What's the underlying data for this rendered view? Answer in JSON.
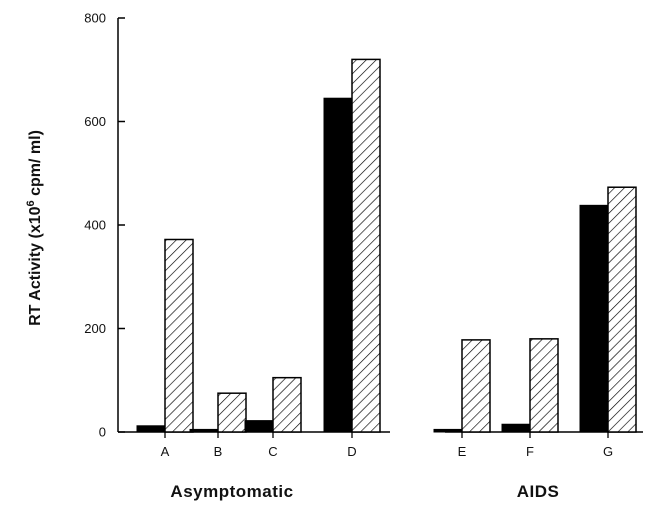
{
  "chart_data": {
    "type": "bar",
    "ylabel": "RT Activity (x10",
    "ylabel_superscript": "6",
    "ylabel_suffix": " cpm/ ml)",
    "ylim": [
      0,
      800
    ],
    "yticks": [
      "0",
      "200",
      "400",
      "600",
      "800"
    ],
    "grid": false,
    "colors": {
      "solid": "#000000",
      "hatched_fill": "#ffffff",
      "hatch": "#000000"
    },
    "groups": [
      {
        "label": "Asymptomatic",
        "categories": [
          "A",
          "B",
          "C",
          "D"
        ]
      },
      {
        "label": "AIDS",
        "categories": [
          "E",
          "F",
          "G"
        ]
      }
    ],
    "categories": [
      "A",
      "B",
      "C",
      "D",
      "E",
      "F",
      "G"
    ],
    "series": [
      {
        "style": "solid",
        "values": [
          12,
          5,
          22,
          645,
          5,
          15,
          438
        ]
      },
      {
        "style": "hatched",
        "values": [
          372,
          75,
          105,
          720,
          178,
          180,
          473
        ]
      }
    ]
  }
}
